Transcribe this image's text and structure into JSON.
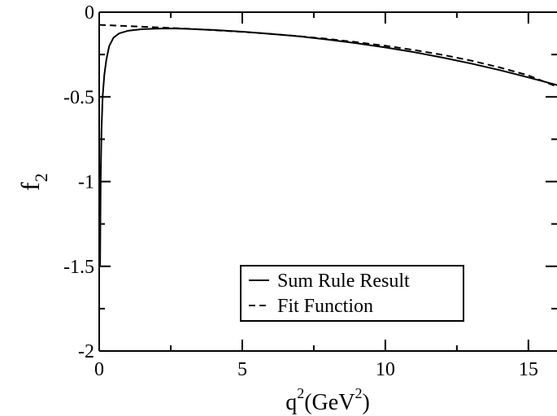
{
  "chart_data": {
    "type": "line",
    "title": "",
    "xlabel": {
      "base": "q",
      "sup": "2",
      "unit_open": "(GeV",
      "unit_sup": "2",
      "unit_close": ")"
    },
    "ylabel": {
      "base": "f",
      "sub": "2"
    },
    "xlim": [
      0,
      16
    ],
    "ylim": [
      -2,
      0
    ],
    "xticks": [
      0,
      5,
      10,
      15
    ],
    "yticks": [
      0,
      -0.5,
      -1,
      -1.5,
      -2
    ],
    "xtick_labels": [
      "0",
      "5",
      "10",
      "15"
    ],
    "ytick_labels": [
      "0",
      "-0.5",
      "-1",
      "-1.5",
      "-2"
    ],
    "legend_position": "lower-center",
    "grid": false,
    "series": [
      {
        "name": "Sum Rule Result",
        "style": "solid",
        "x": [
          0.03,
          0.05,
          0.08,
          0.12,
          0.18,
          0.25,
          0.35,
          0.5,
          0.7,
          1.0,
          1.5,
          2.0,
          2.5,
          3,
          4,
          5,
          6,
          7,
          8,
          9,
          10,
          11,
          12,
          13,
          14,
          15,
          16
        ],
        "y": [
          -1.5,
          -1.0,
          -0.7,
          -0.5,
          -0.37,
          -0.28,
          -0.2,
          -0.15,
          -0.125,
          -0.11,
          -0.1,
          -0.097,
          -0.096,
          -0.098,
          -0.105,
          -0.115,
          -0.128,
          -0.143,
          -0.162,
          -0.183,
          -0.208,
          -0.236,
          -0.268,
          -0.303,
          -0.342,
          -0.385,
          -0.43
        ]
      },
      {
        "name": "Fit Function",
        "style": "dashed",
        "x": [
          0,
          1,
          2,
          3,
          4,
          5,
          6,
          7,
          8,
          9,
          10,
          11,
          12,
          13,
          14,
          15,
          16
        ],
        "y": [
          -0.075,
          -0.082,
          -0.089,
          -0.097,
          -0.106,
          -0.116,
          -0.128,
          -0.142,
          -0.158,
          -0.177,
          -0.198,
          -0.223,
          -0.252,
          -0.286,
          -0.326,
          -0.373,
          -0.44
        ]
      }
    ]
  }
}
